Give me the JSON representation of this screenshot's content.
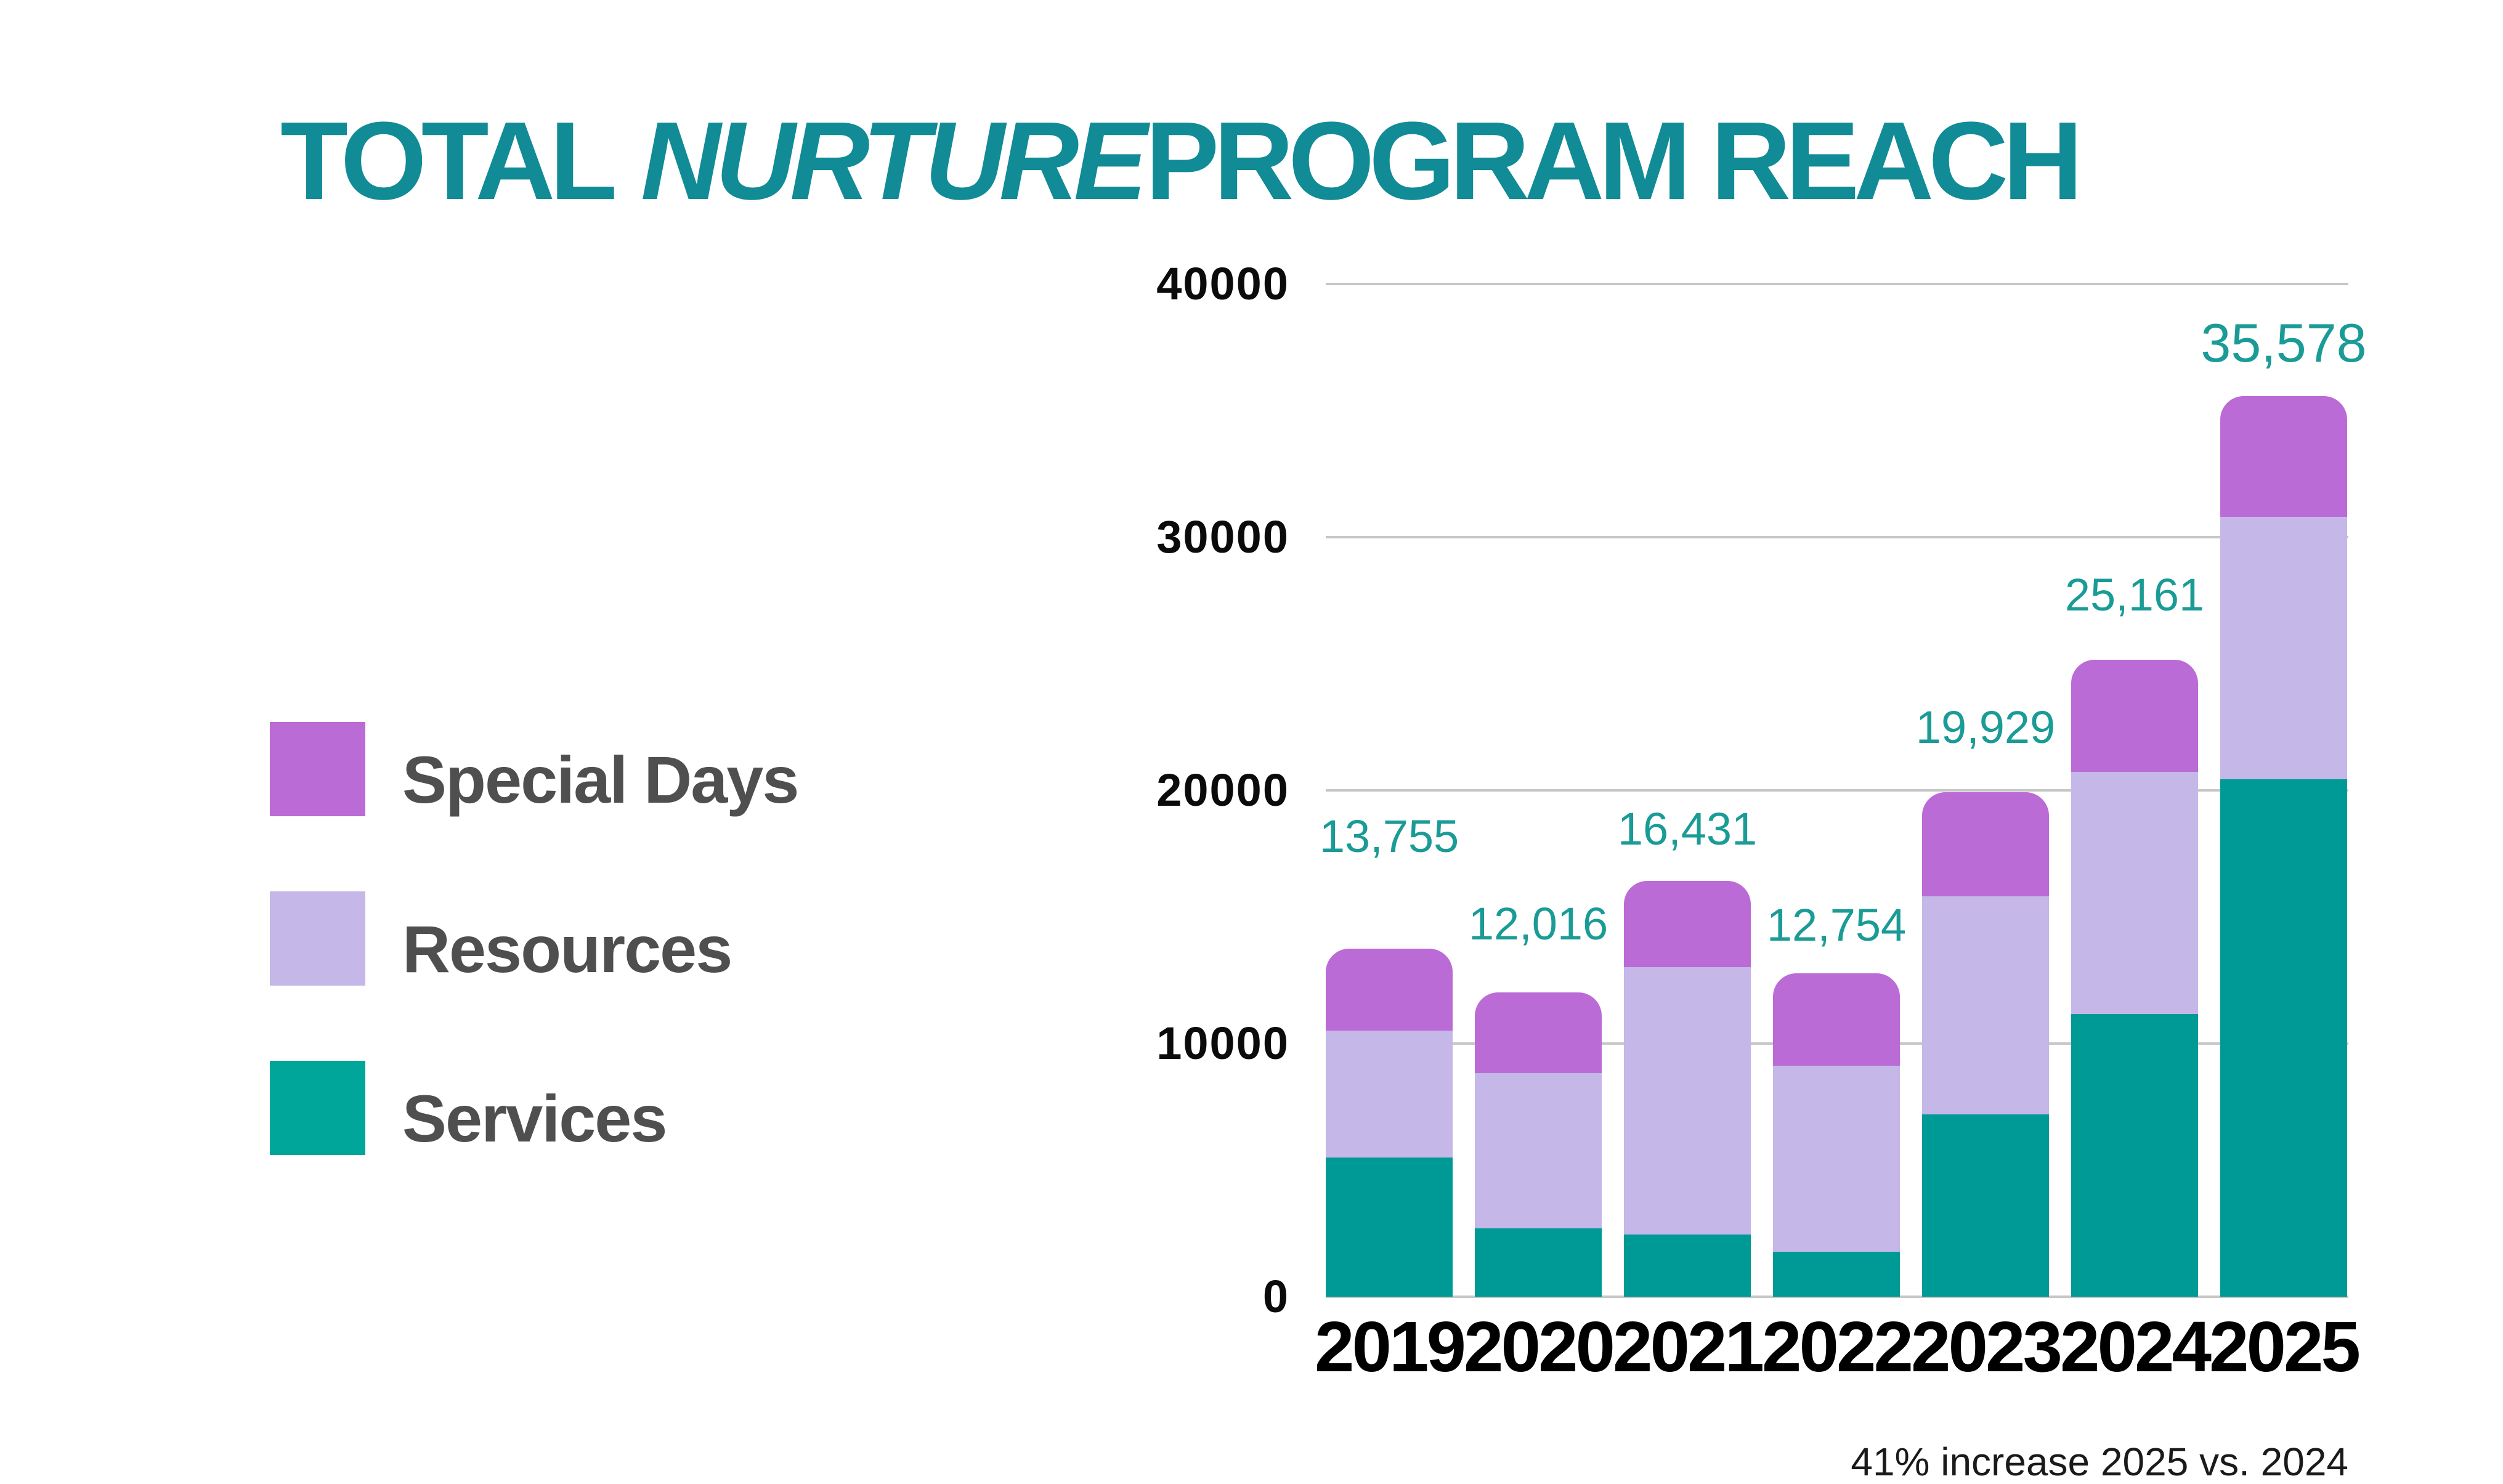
{
  "page": {
    "background": "#FFFFFF"
  },
  "title": {
    "part1": "TOTAL",
    "part2": "NURTURE",
    "part3": "PROGRAM REACH",
    "color": "#118B96"
  },
  "legend": {
    "items": [
      {
        "label": "Special Days",
        "color": "#BB6BD6"
      },
      {
        "label": "Resources",
        "color": "#C5B7E8"
      },
      {
        "label": "Services",
        "color": "#00A69A"
      }
    ]
  },
  "footer": {
    "note": "41% increase 2025 vs. 2024"
  },
  "chart_data": {
    "type": "bar",
    "stacked": true,
    "title": "TOTAL NURTURE PROGRAM REACH",
    "categories": [
      "2019",
      "2020",
      "2021",
      "2022",
      "2023",
      "2024",
      "2025"
    ],
    "series": [
      {
        "name": "Services",
        "color": "#009A96",
        "values": [
          5500,
          2700,
          2450,
          1770,
          7200,
          11170,
          20430
        ]
      },
      {
        "name": "Resources",
        "color": "#C5B7E8",
        "values": [
          5020,
          6120,
          10570,
          7340,
          8610,
          9570,
          10370
        ]
      },
      {
        "name": "Special Days",
        "color": "#BB6BD6",
        "values": [
          3235,
          3196,
          3411,
          3644,
          4119,
          4421,
          4778
        ]
      }
    ],
    "totals": [
      13755,
      12016,
      16431,
      12754,
      19929,
      25161,
      35578
    ],
    "total_labels": [
      "13,755",
      "12,016",
      "16,431",
      "12,754",
      "19,929",
      "25,161",
      "35,578"
    ],
    "value_label_color": "#1A9B96",
    "y_ticks": [
      40000,
      30000,
      20000,
      10000,
      0
    ],
    "y_tick_labels": [
      "40000",
      "30000",
      "20000",
      "10000",
      "0"
    ],
    "ylim": [
      0,
      40000
    ],
    "xlabel": "",
    "ylabel": "",
    "grid": "horizontal",
    "gridline_color": "#C7C7C7",
    "axis_label_color": "#0B0B0B",
    "legend_position": "left",
    "annotation": "41% increase 2025 vs. 2024"
  }
}
